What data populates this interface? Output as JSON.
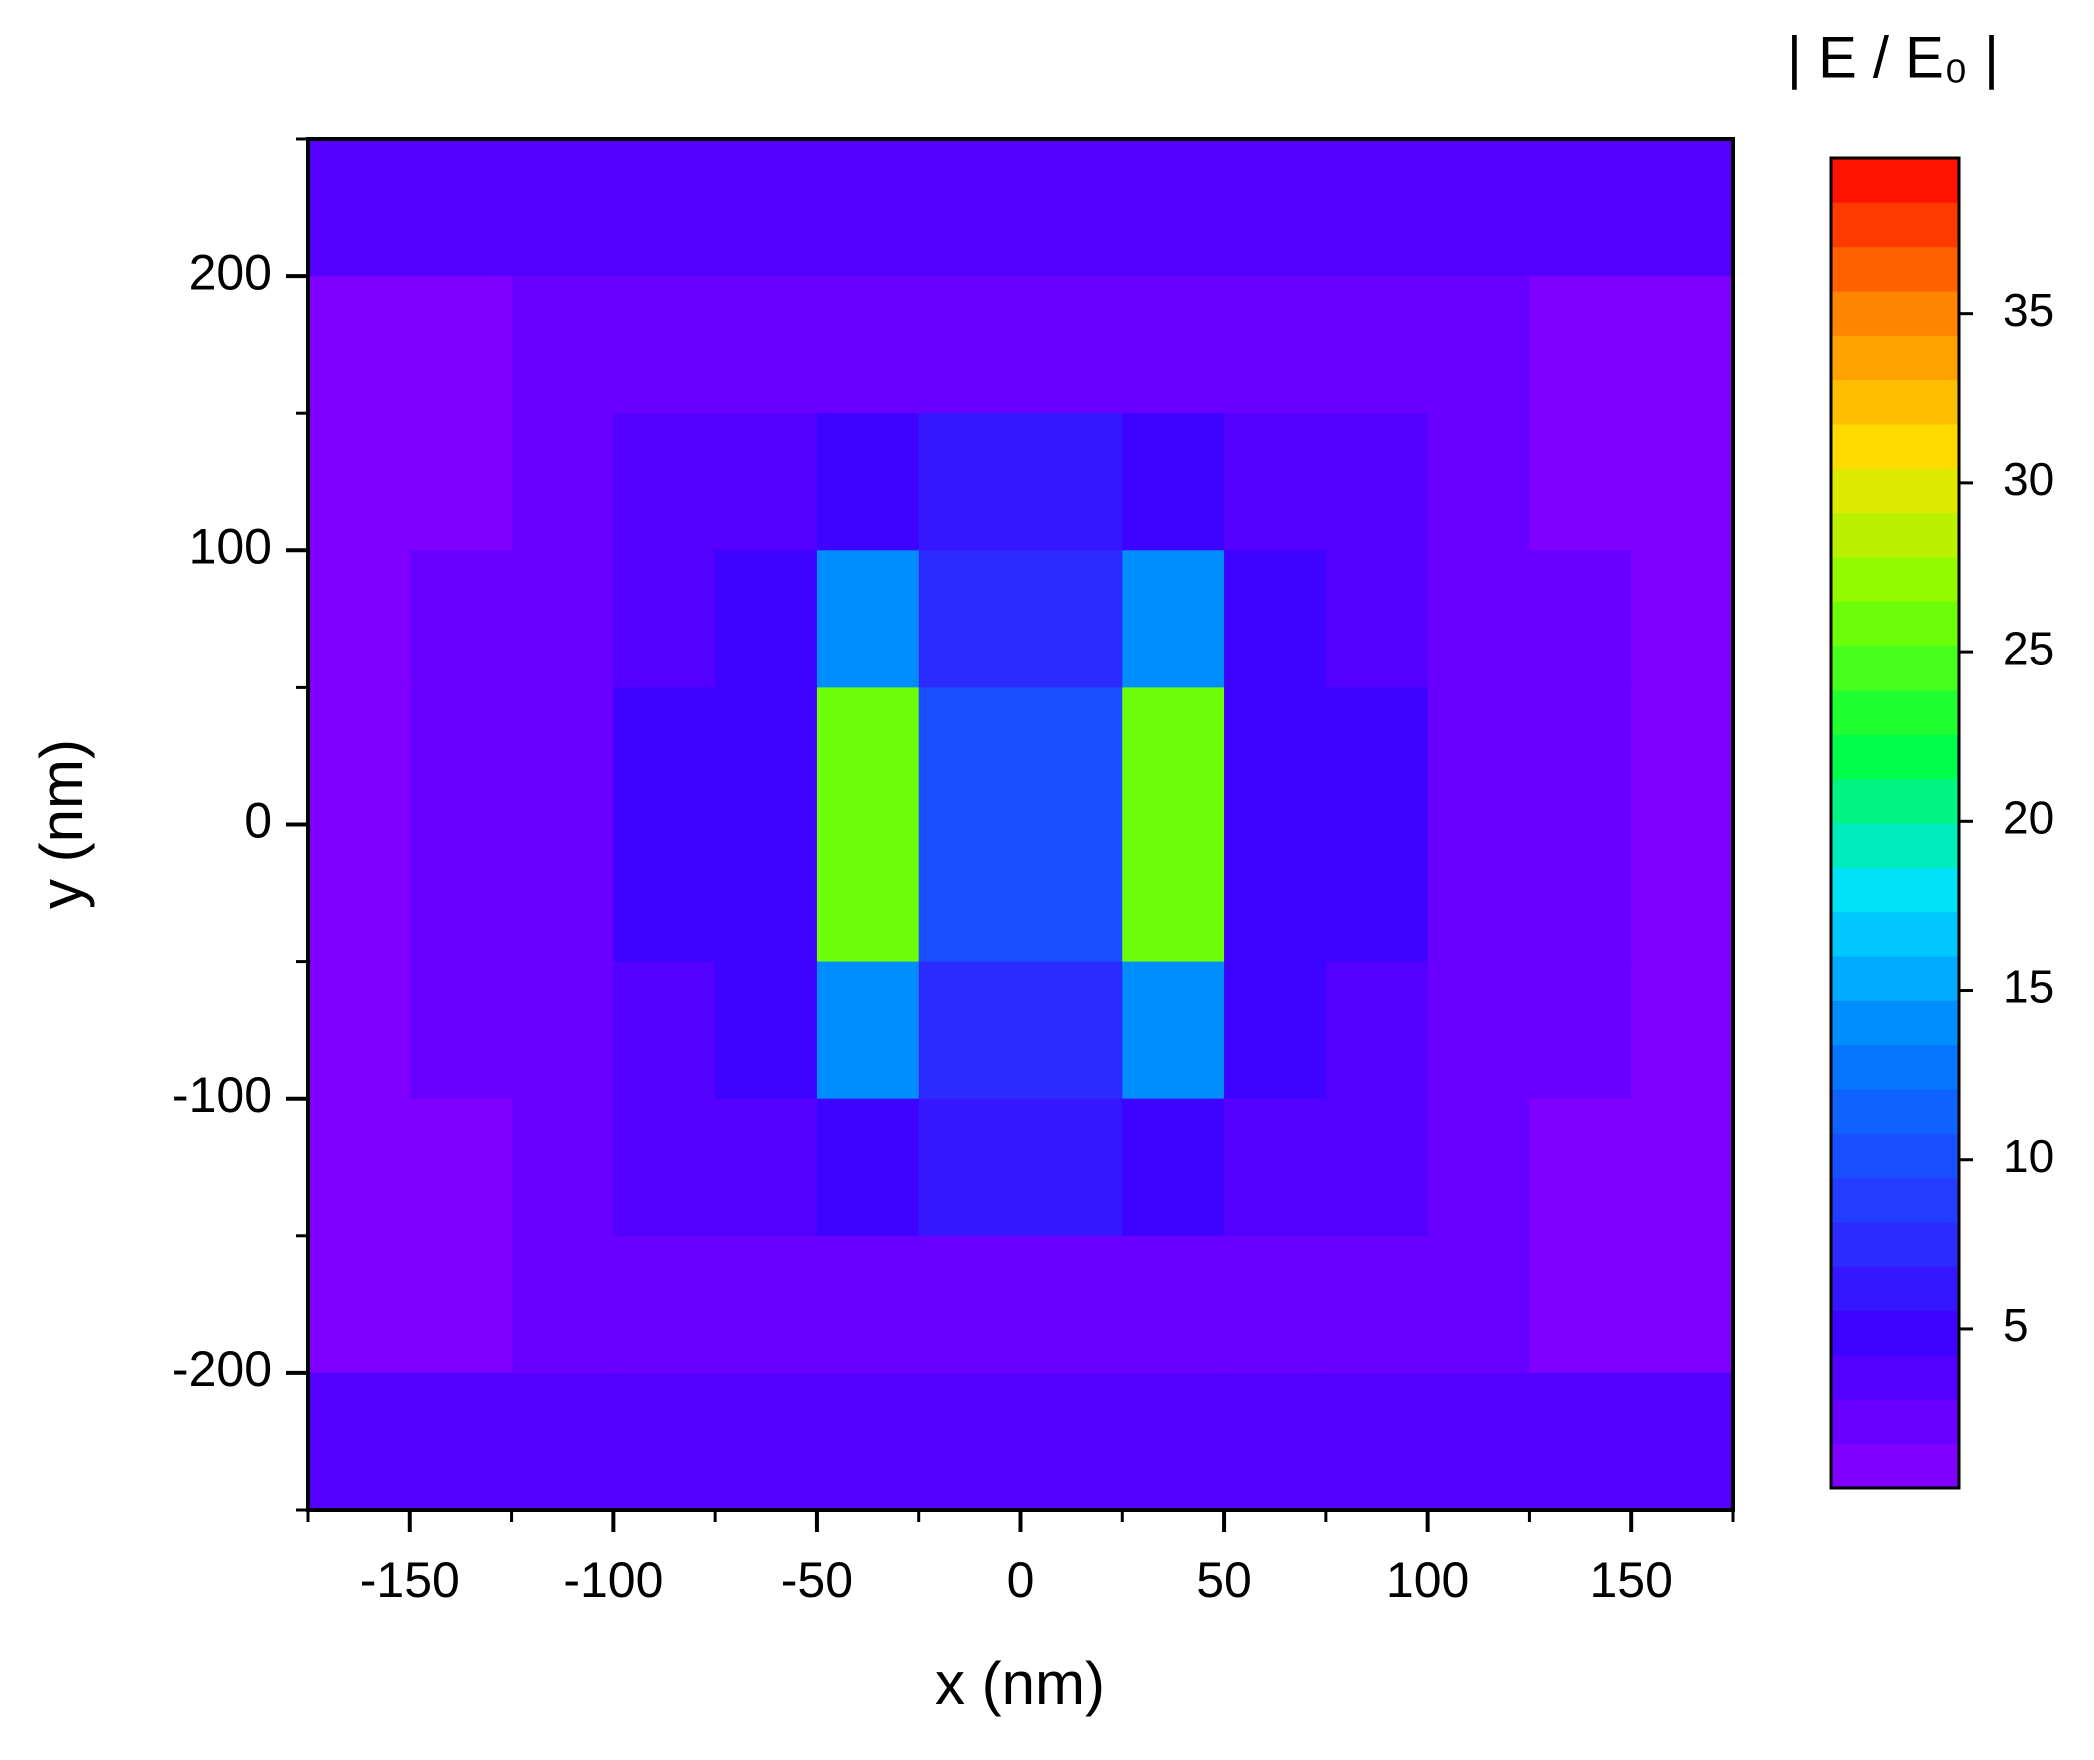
{
  "chart_data": {
    "type": "heatmap",
    "x_label": "x (nm)",
    "y_label": "y (nm)",
    "colorbar_label": "| E / E₀ |",
    "xlim": [
      -175,
      175
    ],
    "ylim": [
      -250,
      250
    ],
    "xticks": [
      -150,
      -100,
      -50,
      0,
      50,
      100,
      150
    ],
    "yticks": [
      -200,
      -100,
      0,
      100,
      200
    ],
    "zlim": [
      0.3,
      39.6
    ],
    "zticks": [
      5,
      10,
      15,
      20,
      25,
      30,
      35
    ],
    "colormap": [
      "#8a00ff",
      "#4000ff",
      "#2040ff",
      "#0080ff",
      "#00e0ff",
      "#00ff40",
      "#80ff00",
      "#ffe000",
      "#ff8000",
      "#ff0000"
    ],
    "x": [
      -162.5,
      -137.5,
      -112.5,
      -87.5,
      -62.5,
      -37.5,
      -12.5,
      12.5,
      37.5,
      62.5,
      87.5,
      112.5,
      137.5,
      162.5
    ],
    "y": [
      225,
      175,
      125,
      75,
      25,
      -25,
      -75,
      -125,
      -175,
      -225
    ],
    "z": [
      [
        3,
        3,
        3,
        3,
        3,
        3,
        3,
        3,
        3,
        3,
        3,
        3,
        3,
        3
      ],
      [
        1.5,
        1.5,
        2,
        2.5,
        2.5,
        2.5,
        2.5,
        2.5,
        2.5,
        2.5,
        2.5,
        2,
        1.5,
        1.5
      ],
      [
        1.5,
        1.5,
        2,
        3,
        3.5,
        5,
        6,
        6,
        5,
        3.5,
        3,
        2,
        1.5,
        1.5
      ],
      [
        1.5,
        2,
        2.5,
        3.5,
        4.5,
        14,
        8,
        8,
        14,
        4.5,
        3.5,
        2.5,
        2,
        1.5
      ],
      [
        1.5,
        2,
        2.5,
        5,
        5.5,
        26,
        10,
        10,
        26,
        5.5,
        5,
        2.5,
        2,
        1.5
      ],
      [
        1.5,
        2,
        2.5,
        5,
        5.5,
        26,
        10,
        10,
        26,
        5.5,
        5,
        2.5,
        2,
        1.5
      ],
      [
        1.5,
        2,
        2.5,
        3.5,
        4.5,
        14,
        8,
        8,
        14,
        4.5,
        3.5,
        2.5,
        2,
        1.5
      ],
      [
        1.5,
        1.5,
        2,
        3,
        3.5,
        5,
        6,
        6,
        5,
        3.5,
        3,
        2,
        1.5,
        1.5
      ],
      [
        1.5,
        1.5,
        2,
        2.5,
        2.5,
        2.5,
        2.5,
        2.5,
        2.5,
        2.5,
        2.5,
        2,
        1.5,
        1.5
      ],
      [
        3,
        3,
        3,
        3,
        3,
        3,
        3,
        3,
        3,
        3,
        3,
        3,
        3,
        3
      ]
    ]
  }
}
